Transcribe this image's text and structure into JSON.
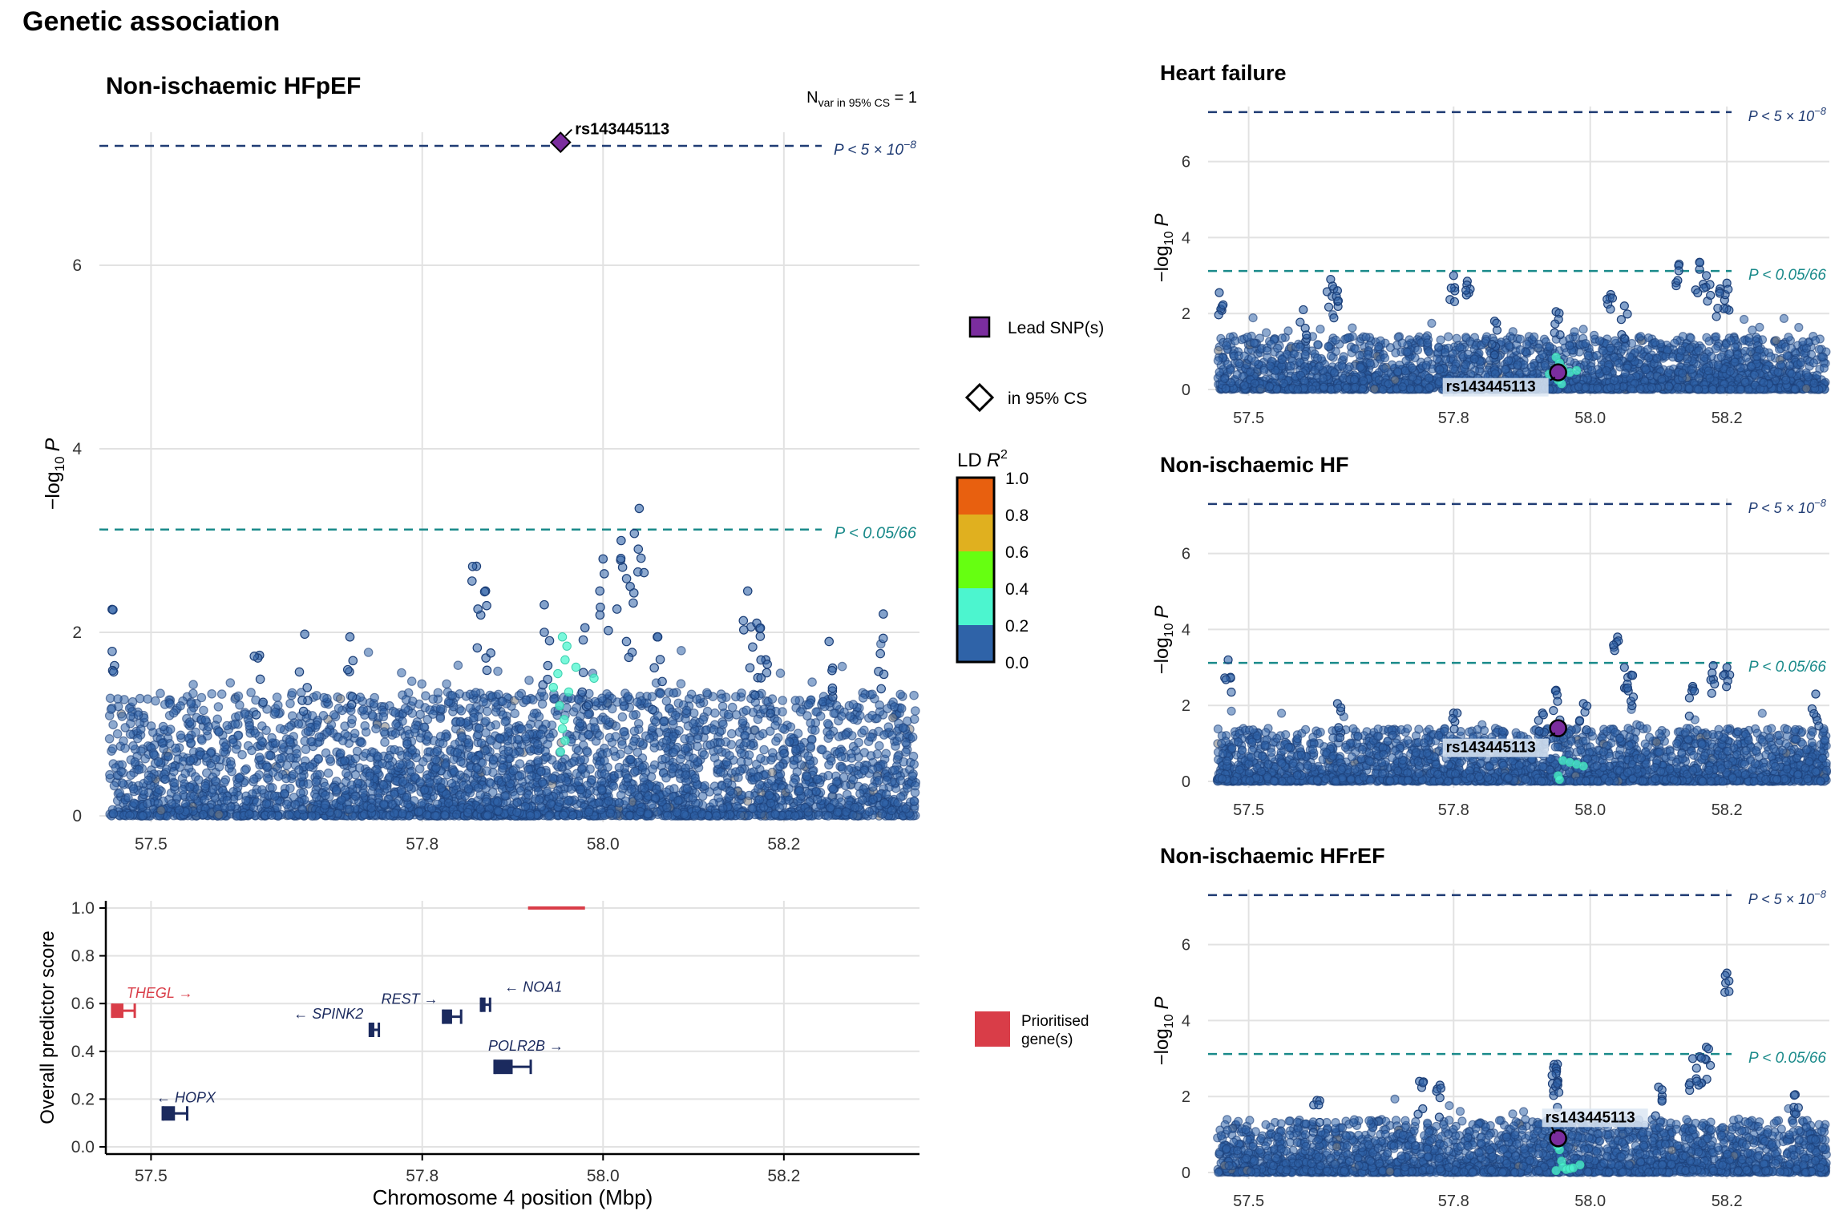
{
  "figure_title": "Genetic association",
  "lead_snp": "rs143445113",
  "thresholds": {
    "gws": {
      "value": 7.30103,
      "prefix": "P < 5 × 10",
      "exp": "−8",
      "color": "#1f3b73"
    },
    "suggestive": {
      "value": 3.1206,
      "label": "P < 0.05/66",
      "color": "#1a8a8a"
    }
  },
  "legend": {
    "lead_label": "Lead SNP(s)",
    "cs_label": "in 95% CS",
    "ld_title": "LD",
    "ld_symbol": "R",
    "ld_exp": "2",
    "ld_ticks": [
      "1.0",
      "0.8",
      "0.6",
      "0.4",
      "0.2",
      "0.0"
    ],
    "ld_colors": [
      "#e8600f",
      "#e0b01f",
      "#66ff11",
      "#4cf5cf",
      "#2f63a8"
    ],
    "prioritised_label_1": "Prioritised",
    "prioritised_label_2": "gene(s)",
    "prioritised_color": "#d93d48"
  },
  "chart_data": [
    {
      "type": "scatter",
      "title": "Non-ischaemic HFpEF",
      "annotation_prefix": "N",
      "annotation_sub": "var in 95% CS",
      "annotation_suffix": " = 1",
      "xlabel": "",
      "ylabel": "−log10 P",
      "xlim": [
        57.45,
        58.35
      ],
      "ylim": [
        0,
        7.35
      ],
      "xticks": [
        "57.5",
        "57.8",
        "58.0",
        "58.2"
      ],
      "yticks": [
        "0",
        "2",
        "4",
        "6"
      ],
      "lead": {
        "x": 57.953,
        "y": 7.34
      },
      "lead_label_pos": "above-right",
      "ld_points": [
        [
          57.955,
          1.95
        ],
        [
          57.96,
          1.85
        ],
        [
          57.958,
          1.7
        ],
        [
          57.97,
          1.62
        ],
        [
          57.95,
          1.55
        ],
        [
          57.99,
          1.5
        ],
        [
          57.945,
          1.4
        ],
        [
          57.962,
          1.35
        ],
        [
          57.952,
          1.2
        ],
        [
          57.957,
          1.05
        ],
        [
          57.955,
          0.95
        ],
        [
          57.958,
          0.82
        ],
        [
          57.953,
          0.7
        ]
      ],
      "peaks": [
        [
          57.457,
          2.25
        ],
        [
          57.67,
          1.98
        ],
        [
          57.72,
          1.95
        ],
        [
          57.86,
          2.72
        ],
        [
          57.87,
          2.45
        ],
        [
          58.04,
          3.35
        ],
        [
          58.02,
          3.0
        ],
        [
          58.0,
          2.8
        ],
        [
          58.03,
          2.5
        ],
        [
          58.16,
          2.45
        ],
        [
          58.17,
          2.1
        ],
        [
          58.31,
          2.2
        ],
        [
          58.25,
          1.9
        ],
        [
          58.18,
          1.7
        ],
        [
          58.06,
          1.95
        ],
        [
          57.98,
          2.05
        ],
        [
          57.62,
          1.75
        ],
        [
          57.935,
          2.3
        ]
      ],
      "seed": 11,
      "density": [
        0.5,
        0.6,
        0.55,
        0.5,
        0.6,
        0.65,
        0.7,
        0.85,
        1.0,
        0.8,
        0.6,
        0.65,
        0.7,
        0.6,
        0.55,
        0.6,
        0.5,
        0.5
      ]
    },
    {
      "type": "scatter",
      "title": "Heart failure",
      "xlabel": "",
      "ylabel": "−log10 P",
      "xlim": [
        57.45,
        58.35
      ],
      "ylim": [
        0,
        7.35
      ],
      "xticks": [
        "57.5",
        "57.8",
        "58.0",
        "58.2"
      ],
      "yticks": [
        "0",
        "2",
        "4",
        "6"
      ],
      "lead": {
        "x": 57.953,
        "y": 0.45
      },
      "lead_label_pos": "below-left",
      "ld_points": [
        [
          57.95,
          0.85
        ],
        [
          57.955,
          0.7
        ],
        [
          57.96,
          0.55
        ],
        [
          57.97,
          0.45
        ],
        [
          57.94,
          0.4
        ],
        [
          57.98,
          0.5
        ],
        [
          57.953,
          0.25
        ],
        [
          57.958,
          0.15
        ]
      ],
      "peaks": [
        [
          57.457,
          2.55
        ],
        [
          57.62,
          2.9
        ],
        [
          57.63,
          2.6
        ],
        [
          57.8,
          3.0
        ],
        [
          57.82,
          2.85
        ],
        [
          58.13,
          3.3
        ],
        [
          58.16,
          3.35
        ],
        [
          58.17,
          3.0
        ],
        [
          58.2,
          2.8
        ],
        [
          58.19,
          2.65
        ],
        [
          58.03,
          2.5
        ],
        [
          58.05,
          2.2
        ],
        [
          57.95,
          2.05
        ],
        [
          57.58,
          2.1
        ],
        [
          57.86,
          1.8
        ]
      ],
      "seed": 23,
      "density": [
        0.55,
        0.6,
        0.55,
        0.55,
        0.6,
        0.55,
        0.6,
        0.65,
        0.7,
        0.7,
        0.75,
        0.8,
        0.85,
        0.8,
        0.75,
        0.7,
        0.65,
        0.6
      ]
    },
    {
      "type": "scatter",
      "title": "Non-ischaemic HF",
      "xlabel": "",
      "ylabel": "−log10 P",
      "xlim": [
        57.45,
        58.35
      ],
      "ylim": [
        0,
        7.35
      ],
      "xticks": [
        "57.5",
        "57.8",
        "58.0",
        "58.2"
      ],
      "yticks": [
        "0",
        "2",
        "4",
        "6"
      ],
      "lead": {
        "x": 57.953,
        "y": 1.4
      },
      "lead_label_pos": "below-left",
      "ld_points": [
        [
          57.96,
          0.55
        ],
        [
          57.97,
          0.5
        ],
        [
          57.98,
          0.45
        ],
        [
          57.953,
          0.15
        ],
        [
          57.955,
          0.05
        ],
        [
          57.99,
          0.4
        ]
      ],
      "peaks": [
        [
          57.47,
          3.2
        ],
        [
          58.04,
          3.8
        ],
        [
          58.05,
          3.0
        ],
        [
          58.06,
          2.8
        ],
        [
          58.18,
          3.05
        ],
        [
          58.2,
          3.0
        ],
        [
          58.15,
          2.5
        ],
        [
          57.95,
          2.4
        ],
        [
          57.99,
          2.05
        ],
        [
          58.33,
          2.3
        ],
        [
          57.63,
          2.05
        ],
        [
          57.8,
          1.8
        ],
        [
          57.93,
          1.8
        ]
      ],
      "seed": 37,
      "density": [
        0.6,
        0.55,
        0.5,
        0.5,
        0.55,
        0.5,
        0.55,
        0.6,
        0.7,
        0.6,
        0.65,
        0.75,
        0.7,
        0.65,
        0.6,
        0.6,
        0.6,
        0.7
      ]
    },
    {
      "type": "scatter",
      "title": "Non-ischaemic HFrEF",
      "xlabel": "",
      "ylabel": "−log10 P",
      "xlim": [
        57.45,
        58.35
      ],
      "ylim": [
        0,
        7.35
      ],
      "xticks": [
        "57.5",
        "57.8",
        "58.0",
        "58.2"
      ],
      "yticks": [
        "0",
        "2",
        "4",
        "6"
      ],
      "lead": {
        "x": 57.953,
        "y": 0.9
      },
      "lead_label_pos": "above-right",
      "ld_points": [
        [
          57.952,
          0.7
        ],
        [
          57.955,
          0.6
        ],
        [
          57.958,
          0.3
        ],
        [
          57.96,
          0.15
        ],
        [
          57.965,
          0.08
        ],
        [
          57.97,
          0.1
        ],
        [
          57.975,
          0.12
        ],
        [
          57.985,
          0.2
        ],
        [
          57.95,
          0.05
        ]
      ],
      "peaks": [
        [
          58.2,
          5.25
        ],
        [
          58.17,
          3.3
        ],
        [
          58.16,
          3.05
        ],
        [
          58.15,
          3.0
        ],
        [
          57.952,
          2.85
        ],
        [
          57.95,
          2.75
        ],
        [
          57.95,
          2.6
        ],
        [
          57.75,
          2.4
        ],
        [
          57.78,
          2.3
        ],
        [
          58.3,
          2.05
        ],
        [
          58.1,
          2.25
        ],
        [
          57.6,
          1.9
        ]
      ],
      "seed": 53,
      "density": [
        0.55,
        0.55,
        0.5,
        0.55,
        0.55,
        0.6,
        0.55,
        0.6,
        0.7,
        0.65,
        0.6,
        0.6,
        0.65,
        0.7,
        0.65,
        0.6,
        0.55,
        0.6
      ]
    },
    {
      "type": "gene-track",
      "xlabel": "Chromosome 4 position (Mbp)",
      "ylabel": "Overall predictor score",
      "xlim": [
        57.45,
        58.35
      ],
      "ylim": [
        0,
        1.0
      ],
      "xticks": [
        "57.5",
        "57.8",
        "58.0",
        "58.2"
      ],
      "yticks": [
        "0.0",
        "0.2",
        "0.4",
        "0.6",
        "0.8",
        "1.0"
      ],
      "top_bar": {
        "start": 57.917,
        "end": 57.98,
        "y": 1.0
      },
      "genes": [
        {
          "name": "THEGL",
          "start": 57.457,
          "end": 57.482,
          "score": 0.57,
          "strand": "+",
          "prioritised": true
        },
        {
          "name": "SPINK2",
          "start": 57.742,
          "end": 57.752,
          "score": 0.49,
          "strand": "-",
          "prioritised": false
        },
        {
          "name": "REST",
          "start": 57.823,
          "end": 57.843,
          "score": 0.545,
          "strand": "+",
          "prioritised": false
        },
        {
          "name": "NOA1",
          "start": 57.865,
          "end": 57.875,
          "score": 0.595,
          "strand": "-",
          "prioritised": false
        },
        {
          "name": "POLR2B",
          "start": 57.88,
          "end": 57.92,
          "score": 0.335,
          "strand": "+",
          "prioritised": false
        },
        {
          "name": "HOPX",
          "start": 57.513,
          "end": 57.54,
          "score": 0.14,
          "strand": "-",
          "prioritised": false
        }
      ]
    }
  ]
}
